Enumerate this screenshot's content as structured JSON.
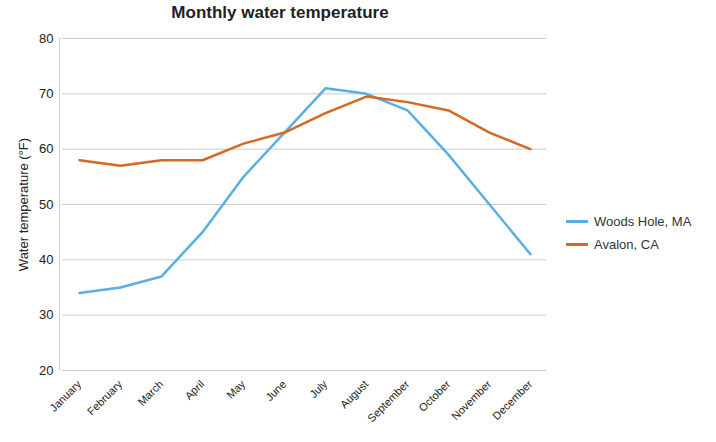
{
  "chart_data": {
    "type": "line",
    "title": "Monthly water temperature",
    "y_label": "Water temperature (°F)",
    "categories": [
      "January",
      "February",
      "March",
      "April",
      "May",
      "June",
      "July",
      "August",
      "September",
      "October",
      "November",
      "December"
    ],
    "series": [
      {
        "name": "Woods Hole, MA",
        "color": "#5aaee6",
        "values": [
          34,
          35,
          37,
          45,
          55,
          63,
          71,
          70,
          67,
          59,
          50,
          41
        ]
      },
      {
        "name": "Avalon, CA",
        "color": "#d4691f",
        "values": [
          58,
          57,
          58,
          58,
          61,
          63,
          66.5,
          69.5,
          68.5,
          67,
          63,
          60
        ]
      }
    ],
    "ylim": [
      20,
      80
    ],
    "yticks": [
      20,
      30,
      40,
      50,
      60,
      70,
      80
    ],
    "grid": true,
    "legend": "right"
  }
}
